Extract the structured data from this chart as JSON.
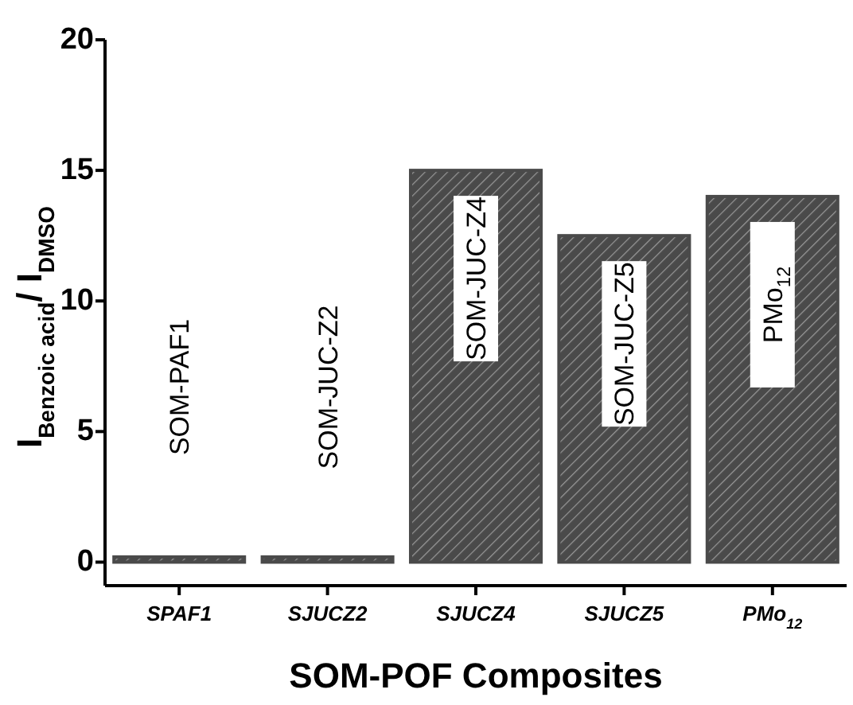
{
  "chart_data": {
    "type": "bar",
    "xlabel": "SOM-POF Composites",
    "ylabel": "I$_{Benzoic acid}$/ I$_{DMSO}$",
    "categories": [
      "SPAF1",
      "SJUCZ2",
      "SJUCZ4",
      "SJUCZ5",
      "PMo$_{12}$"
    ],
    "values": [
      0.2,
      0.2,
      15,
      12.5,
      14
    ],
    "color": "#4a4a4a",
    "ylim": [
      -0.9,
      20
    ],
    "yticks": [
      0,
      5,
      10,
      15,
      20
    ],
    "annotations": [
      "SOM-PAF1",
      "SOM-JUC-Z2",
      "SOM-JUC-Z4",
      "SOM-JUC-Z5",
      "PMo$_{12}$"
    ]
  }
}
